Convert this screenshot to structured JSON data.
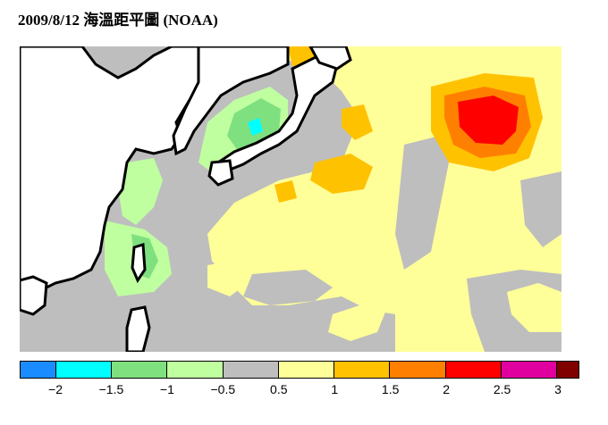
{
  "title": "2009/8/12  海溫距平圖  (NOAA)",
  "legend": {
    "colors": [
      "#1a8cff",
      "#00ffff",
      "#7fe07f",
      "#bfffa0",
      "#bebebe",
      "#ffff99",
      "#ffc200",
      "#ff8000",
      "#ff0000",
      "#e000a0",
      "#800000"
    ],
    "labels": [
      "−2",
      "−1.5",
      "−1",
      "−0.5",
      "0.5",
      "1",
      "1.5",
      "2",
      "2.5",
      "3"
    ]
  }
}
